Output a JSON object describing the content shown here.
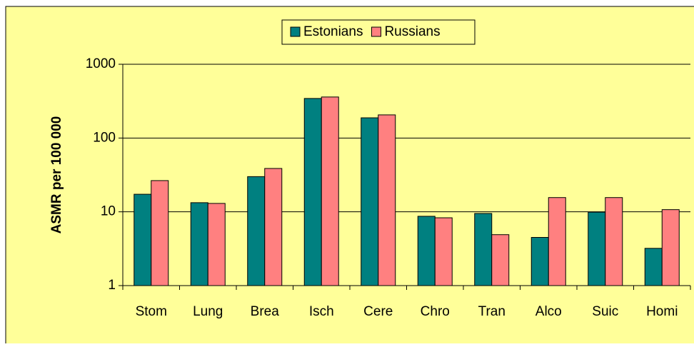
{
  "chart_data": {
    "type": "bar",
    "y_label": "ASMR per 100 000",
    "categories": [
      "Stom",
      "Lung",
      "Brea",
      "Isch",
      "Cere",
      "Chro",
      "Tran",
      "Alco",
      "Suic",
      "Homi"
    ],
    "series": [
      {
        "name": "Estonians",
        "color": "#008080",
        "values": [
          17.3,
          13.3,
          30,
          344,
          188,
          8.7,
          9.5,
          4.5,
          9.9,
          3.2
        ]
      },
      {
        "name": "Russians",
        "color": "#ff8080",
        "values": [
          26.5,
          13,
          38.7,
          360,
          206,
          8.3,
          4.9,
          15.6,
          15.6,
          10.7
        ]
      }
    ],
    "ylim": [
      1,
      1000
    ],
    "yticks": [
      1,
      10,
      100,
      1000
    ],
    "log_scale": true,
    "grid": true,
    "legend": "top"
  }
}
